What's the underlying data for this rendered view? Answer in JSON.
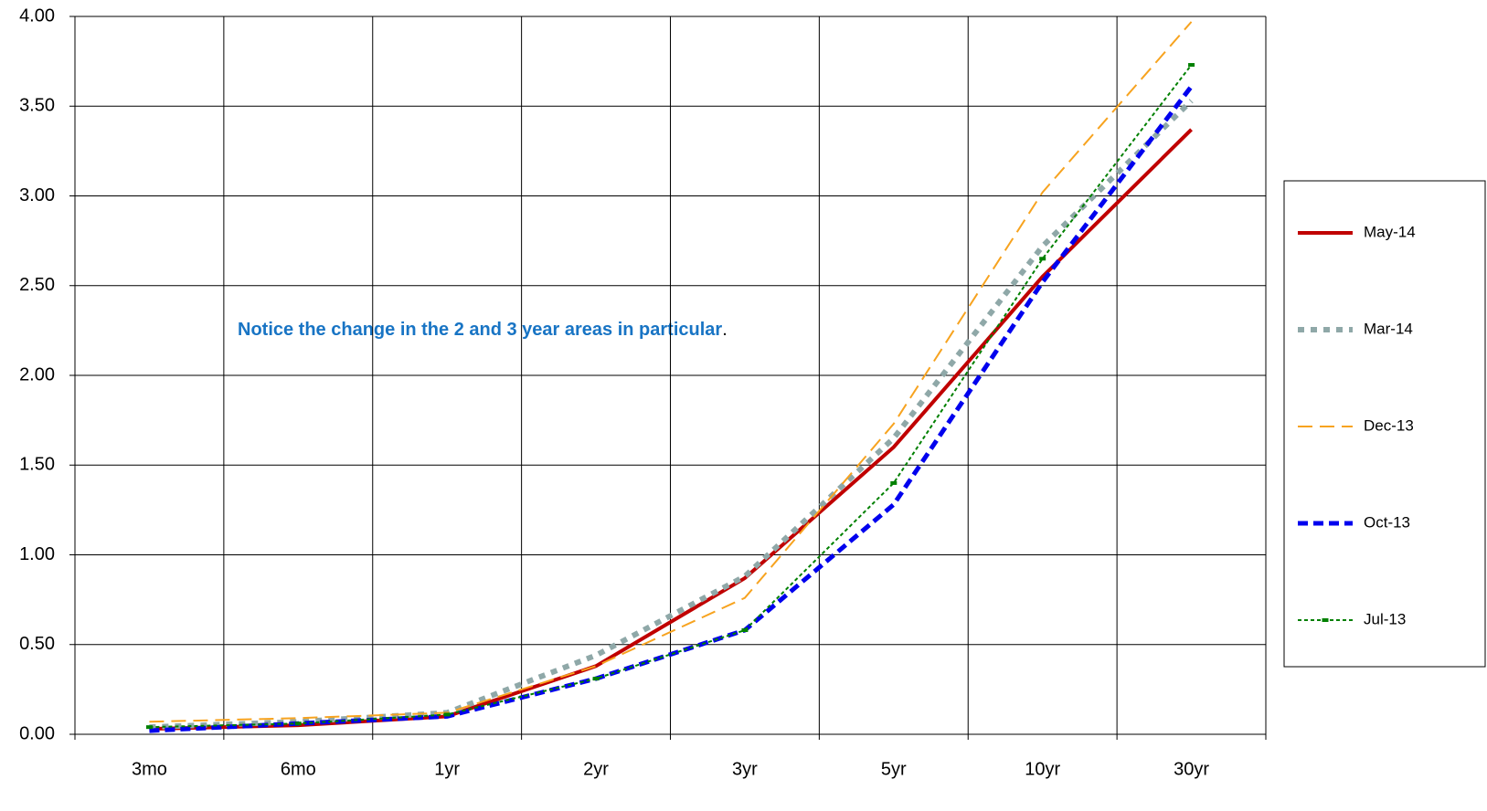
{
  "chart_data": {
    "type": "line",
    "categories": [
      "3mo",
      "6mo",
      "1yr",
      "2yr",
      "3yr",
      "5yr",
      "10yr",
      "30yr"
    ],
    "series": [
      {
        "name": "May-14",
        "color": "#c00000",
        "width": 4,
        "dash": "none",
        "values": [
          0.03,
          0.05,
          0.1,
          0.38,
          0.87,
          1.6,
          2.55,
          3.37
        ]
      },
      {
        "name": "Mar-14",
        "color": "#8fa8a8",
        "width": 6,
        "dash": "7 7",
        "values": [
          0.04,
          0.07,
          0.12,
          0.44,
          0.88,
          1.65,
          2.72,
          3.53
        ]
      },
      {
        "name": "Dec-13",
        "color": "#f7a31f",
        "width": 2,
        "dash": "16 8",
        "values": [
          0.07,
          0.09,
          0.12,
          0.38,
          0.76,
          1.73,
          3.02,
          3.97
        ]
      },
      {
        "name": "Oct-13",
        "color": "#0000ee",
        "width": 5,
        "dash": "11 6",
        "values": [
          0.02,
          0.06,
          0.1,
          0.31,
          0.58,
          1.28,
          2.52,
          3.61
        ]
      },
      {
        "name": "Jul-13",
        "color": "#008000",
        "width": 2,
        "dash": "4 3",
        "marker": true,
        "values": [
          0.04,
          0.06,
          0.11,
          0.31,
          0.58,
          1.4,
          2.65,
          3.73
        ]
      }
    ],
    "ylim": [
      0,
      4
    ],
    "yticks": [
      {
        "value": 0,
        "label": "0.00"
      },
      {
        "value": 0.5,
        "label": "0.50"
      },
      {
        "value": 1,
        "label": "1.00"
      },
      {
        "value": 1.5,
        "label": "1.50"
      },
      {
        "value": 2,
        "label": "2.00"
      },
      {
        "value": 2.5,
        "label": "2.50"
      },
      {
        "value": 3,
        "label": "3.00"
      },
      {
        "value": 3.5,
        "label": "3.50"
      },
      {
        "value": 4,
        "label": "4.00"
      }
    ],
    "grid": true,
    "legend": "right",
    "annotation": {
      "text": "Notice the change in the 2 and 3 year areas in particular",
      "end": "."
    }
  }
}
